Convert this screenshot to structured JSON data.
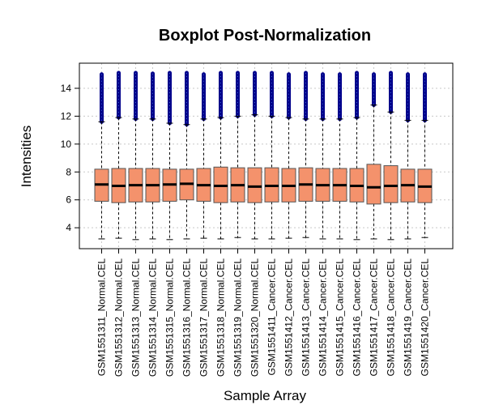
{
  "chart_data": {
    "type": "boxplot",
    "title": "Boxplot Post-Normalization",
    "xlabel": "Sample Array",
    "ylabel": "Intensities",
    "ylim": [
      2.5,
      15.8
    ],
    "yticks": [
      4,
      6,
      8,
      10,
      12,
      14
    ],
    "grid": true,
    "box_fill": "#f4926c",
    "outlier_color": "#00008b",
    "categories": [
      "GSM1551311_Normal.CEL",
      "GSM1551312_Normal.CEL",
      "GSM1551313_Normal.CEL",
      "GSM1551314_Normal.CEL",
      "GSM1551315_Normal.CEL",
      "GSM1551316_Normal.CEL",
      "GSM1551317_Normal.CEL",
      "GSM1551318_Normal.CEL",
      "GSM1551319_Normal.CEL",
      "GSM1551320_Normal.CEL",
      "GSM1551411_Cancer.CEL",
      "GSM1551412_Cancer.CEL",
      "GSM1551413_Cancer.CEL",
      "GSM1551414_Cancer.CEL",
      "GSM1551415_Cancer.CEL",
      "GSM1551416_Cancer.CEL",
      "GSM1551417_Cancer.CEL",
      "GSM1551418_Cancer.CEL",
      "GSM1551419_Cancer.CEL",
      "GSM1551420_Cancer.CEL"
    ],
    "boxes": [
      {
        "min": 3.2,
        "q1": 5.9,
        "median": 7.1,
        "q3": 8.2,
        "whisker_high": 11.6,
        "outlier_max": 15.0
      },
      {
        "min": 3.25,
        "q1": 5.8,
        "median": 7.0,
        "q3": 8.25,
        "whisker_high": 11.9,
        "outlier_max": 15.1
      },
      {
        "min": 3.15,
        "q1": 5.85,
        "median": 7.05,
        "q3": 8.25,
        "whisker_high": 11.8,
        "outlier_max": 15.1
      },
      {
        "min": 3.2,
        "q1": 5.85,
        "median": 7.05,
        "q3": 8.25,
        "whisker_high": 11.8,
        "outlier_max": 15.05
      },
      {
        "min": 3.15,
        "q1": 5.9,
        "median": 7.1,
        "q3": 8.2,
        "whisker_high": 11.5,
        "outlier_max": 15.1
      },
      {
        "min": 3.2,
        "q1": 6.0,
        "median": 7.15,
        "q3": 8.2,
        "whisker_high": 11.4,
        "outlier_max": 15.1
      },
      {
        "min": 3.25,
        "q1": 5.9,
        "median": 7.05,
        "q3": 8.25,
        "whisker_high": 11.8,
        "outlier_max": 15.0
      },
      {
        "min": 3.2,
        "q1": 5.8,
        "median": 7.0,
        "q3": 8.35,
        "whisker_high": 11.9,
        "outlier_max": 15.1
      },
      {
        "min": 3.3,
        "q1": 5.85,
        "median": 7.05,
        "q3": 8.3,
        "whisker_high": 12.0,
        "outlier_max": 15.1
      },
      {
        "min": 3.2,
        "q1": 5.8,
        "median": 6.95,
        "q3": 8.3,
        "whisker_high": 12.1,
        "outlier_max": 15.1
      },
      {
        "min": 3.2,
        "q1": 5.85,
        "median": 7.0,
        "q3": 8.3,
        "whisker_high": 12.0,
        "outlier_max": 15.1
      },
      {
        "min": 3.25,
        "q1": 5.85,
        "median": 7.0,
        "q3": 8.25,
        "whisker_high": 11.9,
        "outlier_max": 15.0
      },
      {
        "min": 3.3,
        "q1": 5.9,
        "median": 7.1,
        "q3": 8.3,
        "whisker_high": 11.8,
        "outlier_max": 15.1
      },
      {
        "min": 3.2,
        "q1": 5.9,
        "median": 7.05,
        "q3": 8.25,
        "whisker_high": 11.8,
        "outlier_max": 15.0
      },
      {
        "min": 3.2,
        "q1": 5.9,
        "median": 7.05,
        "q3": 8.25,
        "whisker_high": 11.8,
        "outlier_max": 15.0
      },
      {
        "min": 3.15,
        "q1": 5.85,
        "median": 7.0,
        "q3": 8.25,
        "whisker_high": 11.9,
        "outlier_max": 15.1
      },
      {
        "min": 3.2,
        "q1": 5.7,
        "median": 6.9,
        "q3": 8.55,
        "whisker_high": 12.8,
        "outlier_max": 15.0
      },
      {
        "min": 3.15,
        "q1": 5.8,
        "median": 7.0,
        "q3": 8.45,
        "whisker_high": 12.3,
        "outlier_max": 15.1
      },
      {
        "min": 3.2,
        "q1": 5.85,
        "median": 7.05,
        "q3": 8.2,
        "whisker_high": 11.7,
        "outlier_max": 15.0
      },
      {
        "min": 3.3,
        "q1": 5.8,
        "median": 6.95,
        "q3": 8.2,
        "whisker_high": 11.7,
        "outlier_max": 15.0
      }
    ]
  }
}
